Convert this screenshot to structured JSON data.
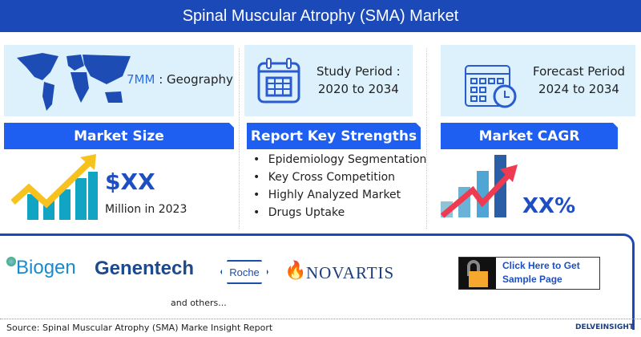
{
  "title": "Spinal Muscular Atrophy (SMA) Market",
  "geography": {
    "highlight": "7MM",
    "label": ": Geography"
  },
  "study": {
    "line1": "Study Period :",
    "line2": "2020 to 2034"
  },
  "forecast": {
    "line1": "Forecast Period",
    "line2": "2024 to 2034"
  },
  "market_size": {
    "header": "Market Size",
    "value": "$XX",
    "sub": "Million in 2023"
  },
  "strengths": {
    "header": "Report Key Strengths",
    "items": [
      "Epidemiology Segmentation",
      "Key Cross Competition",
      "Highly Analyzed Market",
      "Drugs Uptake"
    ]
  },
  "cagr": {
    "header": "Market CAGR",
    "value": "XX%"
  },
  "companies": [
    "Biogen",
    "Genentech",
    "Roche",
    "NOVARTIS"
  ],
  "others": "and others...",
  "cta": {
    "line1": "Click Here to Get",
    "line2": "Sample Page"
  },
  "source": "Source: Spinal Muscular Atrophy (SMA) Marke Insight Report",
  "brand": "DELVEINSIGHT",
  "colors": {
    "title_bg": "#1c49b8",
    "header_bg": "#1e5ef0",
    "panel_bg": "#dcf1fc",
    "accent": "#1e4fc1"
  }
}
